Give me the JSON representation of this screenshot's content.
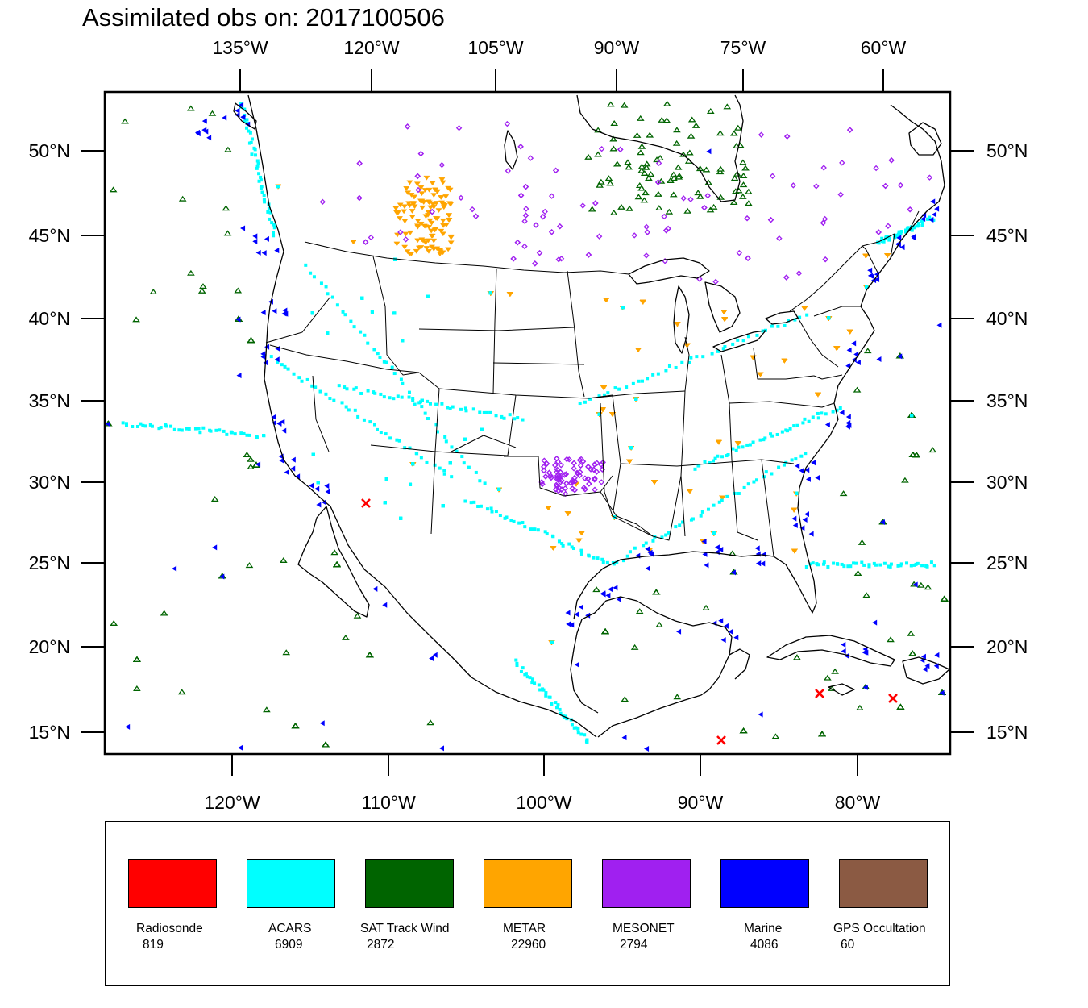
{
  "title": "Assimilated obs on: 2017100506",
  "map": {
    "projection": "lambert-conic",
    "region": "CONUS, southern Canada, Mexico, Gulf of Mexico, Caribbean",
    "top_axis_lon_labels": [
      "135°W",
      "120°W",
      "105°W",
      "90°W",
      "75°W",
      "60°W"
    ],
    "bottom_axis_lon_labels": [
      "120°W",
      "110°W",
      "100°W",
      "90°W",
      "80°W"
    ],
    "left_axis_lat_labels": [
      "50°N",
      "45°N",
      "40°N",
      "35°N",
      "30°N",
      "25°N",
      "20°N",
      "15°N"
    ],
    "right_axis_lat_labels": [
      "50°N",
      "45°N",
      "40°N",
      "35°N",
      "30°N",
      "25°N",
      "20°N",
      "15°N"
    ]
  },
  "colors": {
    "radiosonde": "#ff0000",
    "acars": "#00ffff",
    "sat_track_wind": "#006400",
    "metar": "#ffa500",
    "mesonet": "#a020f0",
    "marine": "#0000ff",
    "gps": "#8b5a43",
    "coast": "#000000"
  },
  "legend": [
    {
      "name": "Radiosonde",
      "count": "819",
      "color": "#ff0000"
    },
    {
      "name": "ACARS",
      "count": "6909",
      "color": "#00ffff"
    },
    {
      "name": "SAT Track Wind",
      "count": "2872",
      "color": "#006400"
    },
    {
      "name": "METAR",
      "count": "22960",
      "color": "#ffa500"
    },
    {
      "name": "MESONET",
      "count": "2794",
      "color": "#a020f0"
    },
    {
      "name": "Marine",
      "count": "4086",
      "color": "#0000ff"
    },
    {
      "name": "GPS Occultation",
      "count": "60",
      "color": "#8b5a43"
    }
  ]
}
